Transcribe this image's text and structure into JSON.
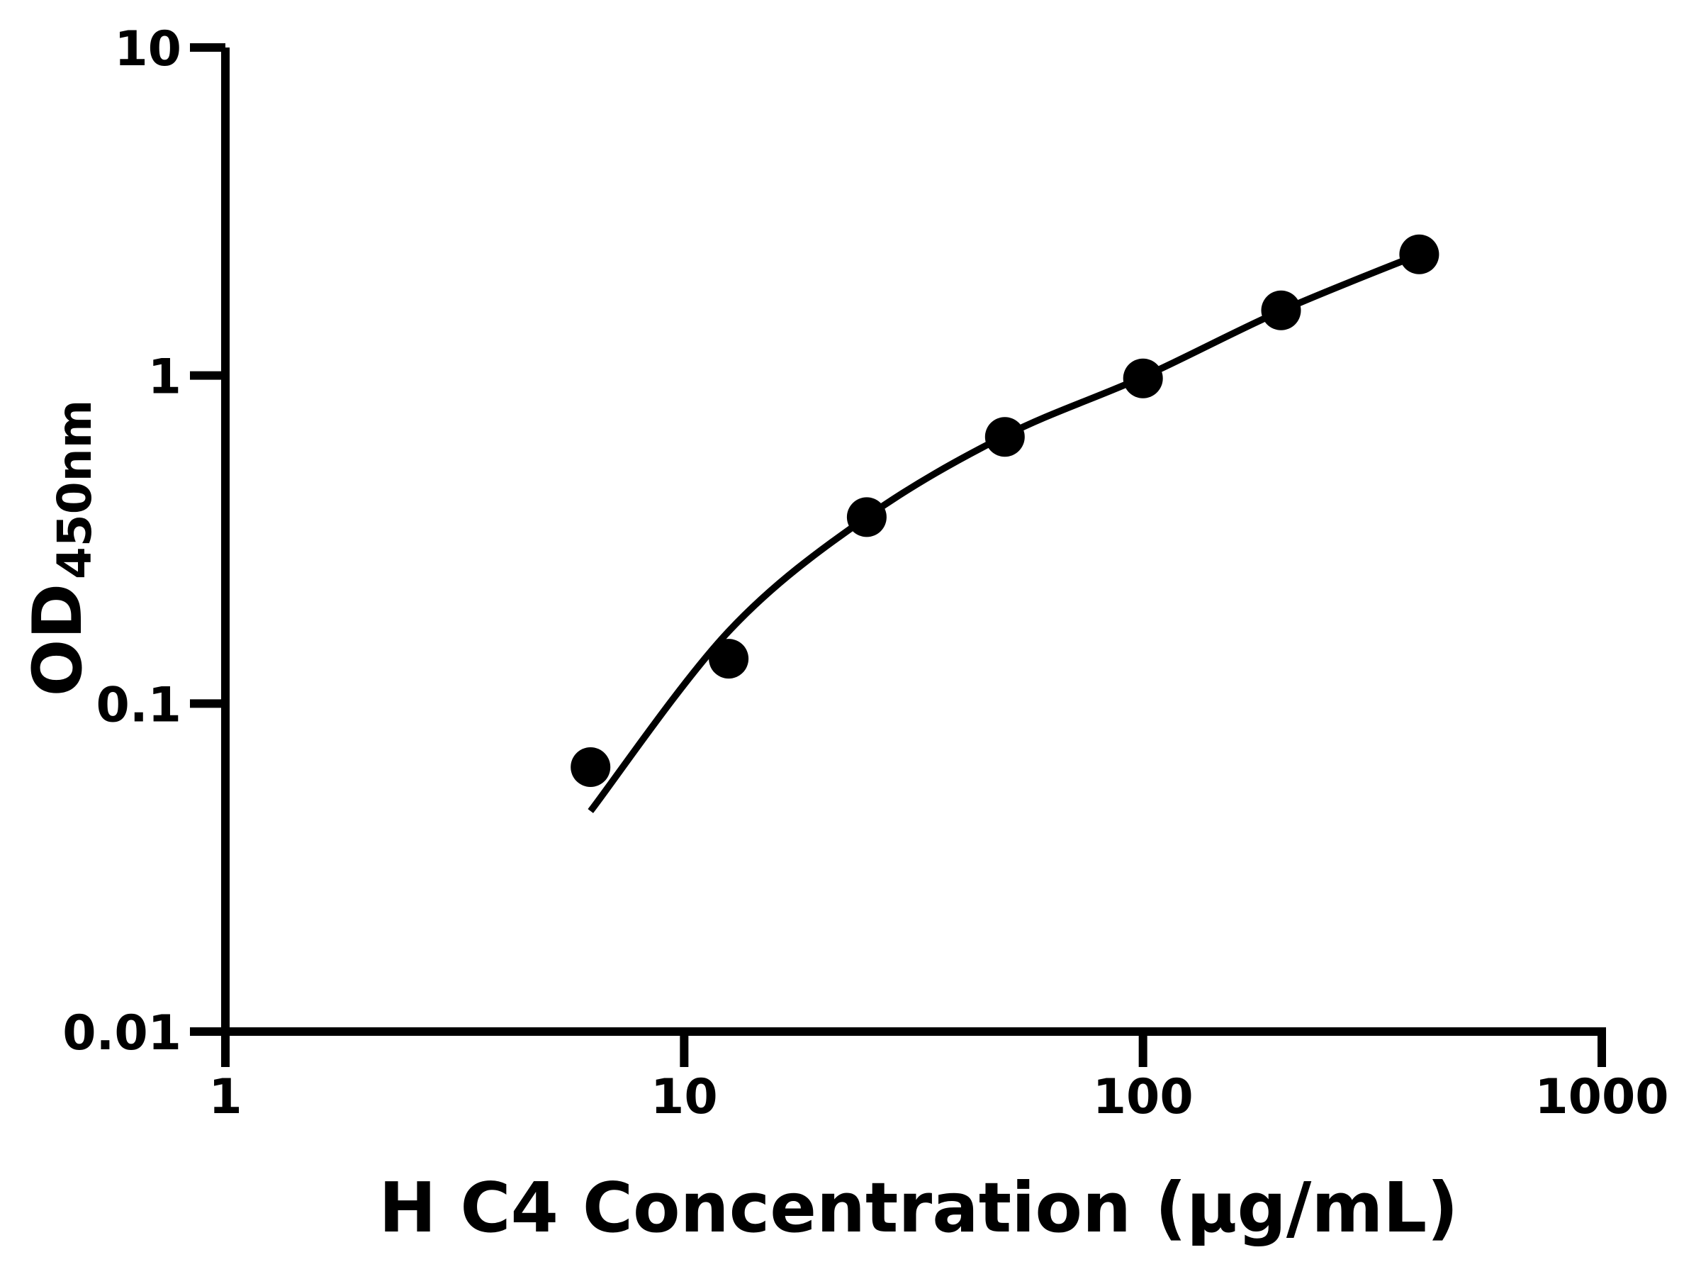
{
  "figure": {
    "background_color": "#ffffff",
    "ink_color": "#000000"
  },
  "chart_data": {
    "type": "scatter",
    "title": "",
    "xlabel": "H C4 Concentration (μg/mL)",
    "ylabel_main": "OD",
    "ylabel_sub": "450nm",
    "x_scale": "log",
    "y_scale": "log",
    "xlim": [
      1,
      1000
    ],
    "ylim": [
      0.01,
      10
    ],
    "x_ticks": [
      1,
      10,
      100,
      1000
    ],
    "x_tick_labels": [
      "1",
      "10",
      "100",
      "1000"
    ],
    "y_ticks": [
      0.01,
      0.1,
      1,
      10
    ],
    "y_tick_labels": [
      "0.01",
      "0.1",
      "1",
      "10"
    ],
    "grid": false,
    "legend": null,
    "frame": "open-left-bottom",
    "series": [
      {
        "name": "standard-data-points",
        "type": "scatter",
        "marker": "filled-circle",
        "color": "#000000",
        "x": [
          6.25,
          12.5,
          25,
          50,
          100,
          200,
          400
        ],
        "y": [
          0.064,
          0.137,
          0.37,
          0.65,
          0.98,
          1.58,
          2.34
        ]
      },
      {
        "name": "fitted-standard-curve",
        "type": "line",
        "color": "#000000",
        "x": [
          6.25,
          12.5,
          25,
          50,
          100,
          200,
          400
        ],
        "y": [
          0.047,
          0.166,
          0.37,
          0.655,
          0.99,
          1.575,
          2.34
        ]
      }
    ]
  }
}
